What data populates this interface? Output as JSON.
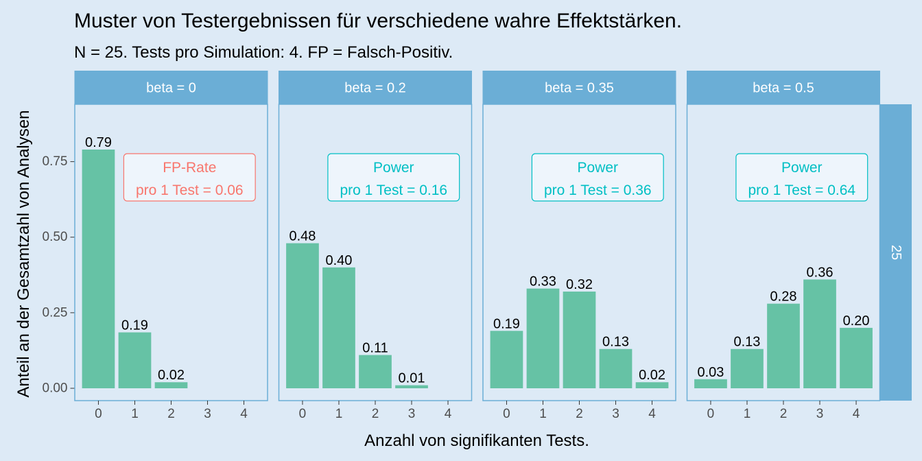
{
  "chart_data": {
    "type": "bar",
    "title": "Muster von Testergebnissen für verschiedene wahre Effektstärken.",
    "subtitle": "N = 25. Tests pro Simulation: 4. FP = Falsch-Positiv.",
    "xlabel": "Anzahl von signifikanten Tests.",
    "ylabel": "Anteil an der Gesamtzahl von Analysen",
    "row_strip": "25",
    "categories": [
      "0",
      "1",
      "2",
      "3",
      "4"
    ],
    "y_ticks": [
      "0.00",
      "0.25",
      "0.50",
      "0.75"
    ],
    "ylim": [
      0,
      0.79
    ],
    "grid": false,
    "colors": {
      "background": "#ddeaf6",
      "panel_border": "#6baed6",
      "strip": "#6baed6",
      "strip_text": "#ffffff",
      "bar": "#66c2a5",
      "fp": "#f8766d",
      "power": "#00bfc4",
      "label_fill": "#eef5fc",
      "text": "#000000",
      "tick_text": "#4d4d4d"
    },
    "panels": [
      {
        "strip": "beta = 0",
        "values": [
          0.79,
          0.185,
          0.02,
          0,
          0
        ],
        "value_labels": [
          "0.79",
          "0.19",
          "0.02",
          "",
          ""
        ],
        "annotation": {
          "line1": "FP-Rate",
          "line2": "pro 1 Test = 0.06",
          "kind": "fp"
        }
      },
      {
        "strip": "beta = 0.2",
        "values": [
          0.48,
          0.4,
          0.11,
          0.01,
          0
        ],
        "value_labels": [
          "0.48",
          "0.40",
          "0.11",
          "0.01",
          ""
        ],
        "annotation": {
          "line1": "Power",
          "line2": "pro 1 Test = 0.16",
          "kind": "power"
        }
      },
      {
        "strip": "beta = 0.35",
        "values": [
          0.19,
          0.33,
          0.32,
          0.13,
          0.02
        ],
        "value_labels": [
          "0.19",
          "0.33",
          "0.32",
          "0.13",
          "0.02"
        ],
        "annotation": {
          "line1": "Power",
          "line2": "pro 1 Test = 0.36",
          "kind": "power"
        }
      },
      {
        "strip": "beta = 0.5",
        "values": [
          0.03,
          0.13,
          0.28,
          0.36,
          0.2
        ],
        "value_labels": [
          "0.03",
          "0.13",
          "0.28",
          "0.36",
          "0.20"
        ],
        "annotation": {
          "line1": "Power",
          "line2": "pro 1 Test = 0.64",
          "kind": "power"
        }
      }
    ]
  }
}
